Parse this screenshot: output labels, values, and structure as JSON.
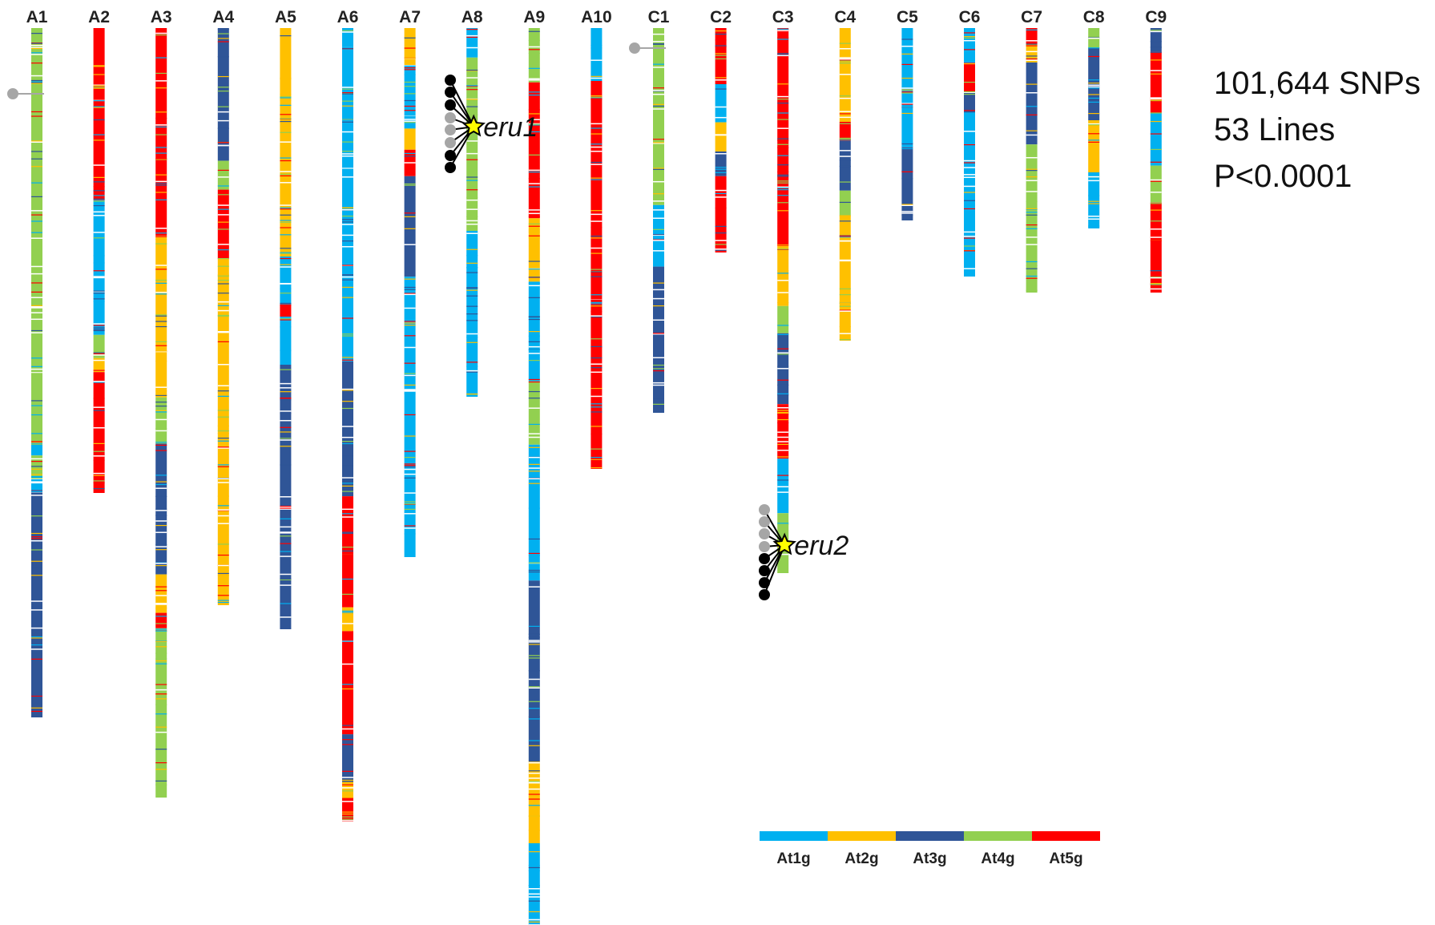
{
  "figure": {
    "stats": [
      "101,644 SNPs",
      "53 Lines",
      "P<0.0001"
    ]
  },
  "palette": {
    "At1g": "#00B0F0",
    "At2g": "#FFC000",
    "At3g": "#2F5597",
    "At4g": "#92D050",
    "At5g": "#FF0000"
  },
  "legend": [
    {
      "key": "At1g",
      "label": "At1g",
      "color": "#00B0F0"
    },
    {
      "key": "At2g",
      "label": "At2g",
      "color": "#FFC000"
    },
    {
      "key": "At3g",
      "label": "At3g",
      "color": "#2F5597"
    },
    {
      "key": "At4g",
      "label": "At4g",
      "color": "#92D050"
    },
    {
      "key": "At5g",
      "label": "At5g",
      "color": "#FF0000"
    }
  ],
  "chromosomes": [
    {
      "name": "A1",
      "length": 0.86,
      "segments": [
        {
          "from": 0.0,
          "to": 0.6,
          "group": "At4g"
        },
        {
          "from": 0.6,
          "to": 0.62,
          "group": "At1g"
        },
        {
          "from": 0.62,
          "to": 0.65,
          "group": "At4g"
        },
        {
          "from": 0.65,
          "to": 0.67,
          "group": "At1g"
        },
        {
          "from": 0.67,
          "to": 1.0,
          "group": "At3g"
        }
      ]
    },
    {
      "name": "A2",
      "length": 0.58,
      "segments": [
        {
          "from": 0.0,
          "to": 0.37,
          "group": "At5g"
        },
        {
          "from": 0.37,
          "to": 0.66,
          "group": "At1g"
        },
        {
          "from": 0.66,
          "to": 0.71,
          "group": "At4g"
        },
        {
          "from": 0.71,
          "to": 0.74,
          "group": "At2g"
        },
        {
          "from": 0.74,
          "to": 1.0,
          "group": "At5g"
        }
      ]
    },
    {
      "name": "A3",
      "length": 0.96,
      "segments": [
        {
          "from": 0.0,
          "to": 0.27,
          "group": "At5g"
        },
        {
          "from": 0.27,
          "to": 0.48,
          "group": "At2g"
        },
        {
          "from": 0.48,
          "to": 0.54,
          "group": "At4g"
        },
        {
          "from": 0.54,
          "to": 0.71,
          "group": "At3g"
        },
        {
          "from": 0.71,
          "to": 0.76,
          "group": "At2g"
        },
        {
          "from": 0.76,
          "to": 0.78,
          "group": "At5g"
        },
        {
          "from": 0.78,
          "to": 1.0,
          "group": "At4g"
        }
      ]
    },
    {
      "name": "A4",
      "length": 0.72,
      "segments": [
        {
          "from": 0.0,
          "to": 0.23,
          "group": "At3g"
        },
        {
          "from": 0.23,
          "to": 0.28,
          "group": "At4g"
        },
        {
          "from": 0.28,
          "to": 0.4,
          "group": "At5g"
        },
        {
          "from": 0.4,
          "to": 1.0,
          "group": "At2g"
        }
      ]
    },
    {
      "name": "A5",
      "length": 0.75,
      "segments": [
        {
          "from": 0.0,
          "to": 0.38,
          "group": "At2g"
        },
        {
          "from": 0.38,
          "to": 0.46,
          "group": "At1g"
        },
        {
          "from": 0.46,
          "to": 0.48,
          "group": "At5g"
        },
        {
          "from": 0.48,
          "to": 0.56,
          "group": "At1g"
        },
        {
          "from": 0.56,
          "to": 1.0,
          "group": "At3g"
        }
      ]
    },
    {
      "name": "A6",
      "length": 0.99,
      "segments": [
        {
          "from": 0.0,
          "to": 0.42,
          "group": "At1g"
        },
        {
          "from": 0.42,
          "to": 0.59,
          "group": "At3g"
        },
        {
          "from": 0.59,
          "to": 0.73,
          "group": "At5g"
        },
        {
          "from": 0.73,
          "to": 0.76,
          "group": "At2g"
        },
        {
          "from": 0.76,
          "to": 0.89,
          "group": "At5g"
        },
        {
          "from": 0.89,
          "to": 0.95,
          "group": "At3g"
        },
        {
          "from": 0.95,
          "to": 0.97,
          "group": "At2g"
        },
        {
          "from": 0.97,
          "to": 1.0,
          "group": "At5g"
        }
      ]
    },
    {
      "name": "A7",
      "length": 0.66,
      "segments": [
        {
          "from": 0.0,
          "to": 0.07,
          "group": "At2g"
        },
        {
          "from": 0.07,
          "to": 0.19,
          "group": "At1g"
        },
        {
          "from": 0.19,
          "to": 0.23,
          "group": "At2g"
        },
        {
          "from": 0.23,
          "to": 0.28,
          "group": "At5g"
        },
        {
          "from": 0.28,
          "to": 0.47,
          "group": "At3g"
        },
        {
          "from": 0.47,
          "to": 1.0,
          "group": "At1g"
        }
      ]
    },
    {
      "name": "A8",
      "length": 0.46,
      "segments": [
        {
          "from": 0.0,
          "to": 0.08,
          "group": "At1g"
        },
        {
          "from": 0.08,
          "to": 0.55,
          "group": "At4g"
        },
        {
          "from": 0.55,
          "to": 1.0,
          "group": "At1g"
        }
      ]
    },
    {
      "name": "A9",
      "length": 1.13,
      "segments": [
        {
          "from": 0.0,
          "to": 0.06,
          "group": "At4g"
        },
        {
          "from": 0.06,
          "to": 0.21,
          "group": "At5g"
        },
        {
          "from": 0.21,
          "to": 0.28,
          "group": "At2g"
        },
        {
          "from": 0.28,
          "to": 0.39,
          "group": "At1g"
        },
        {
          "from": 0.39,
          "to": 0.46,
          "group": "At4g"
        },
        {
          "from": 0.46,
          "to": 0.61,
          "group": "At1g"
        },
        {
          "from": 0.61,
          "to": 0.81,
          "group": "At3g"
        },
        {
          "from": 0.81,
          "to": 0.9,
          "group": "At2g"
        },
        {
          "from": 0.9,
          "to": 1.0,
          "group": "At1g"
        }
      ]
    },
    {
      "name": "A10",
      "length": 0.55,
      "segments": [
        {
          "from": 0.0,
          "to": 0.12,
          "group": "At1g"
        },
        {
          "from": 0.12,
          "to": 1.0,
          "group": "At5g"
        }
      ]
    },
    {
      "name": "C1",
      "length": 0.48,
      "segments": [
        {
          "from": 0.0,
          "to": 0.46,
          "group": "At4g"
        },
        {
          "from": 0.46,
          "to": 0.62,
          "group": "At1g"
        },
        {
          "from": 0.62,
          "to": 1.0,
          "group": "At3g"
        }
      ]
    },
    {
      "name": "C2",
      "length": 0.28,
      "segments": [
        {
          "from": 0.0,
          "to": 0.25,
          "group": "At5g"
        },
        {
          "from": 0.25,
          "to": 0.42,
          "group": "At1g"
        },
        {
          "from": 0.42,
          "to": 0.55,
          "group": "At2g"
        },
        {
          "from": 0.55,
          "to": 0.66,
          "group": "At3g"
        },
        {
          "from": 0.66,
          "to": 1.0,
          "group": "At5g"
        }
      ]
    },
    {
      "name": "C3",
      "length": 0.68,
      "segments": [
        {
          "from": 0.0,
          "to": 0.4,
          "group": "At5g"
        },
        {
          "from": 0.4,
          "to": 0.51,
          "group": "At2g"
        },
        {
          "from": 0.51,
          "to": 0.56,
          "group": "At4g"
        },
        {
          "from": 0.56,
          "to": 0.69,
          "group": "At3g"
        },
        {
          "from": 0.69,
          "to": 0.79,
          "group": "At5g"
        },
        {
          "from": 0.79,
          "to": 0.89,
          "group": "At1g"
        },
        {
          "from": 0.89,
          "to": 1.0,
          "group": "At4g"
        }
      ]
    },
    {
      "name": "C4",
      "length": 0.39,
      "segments": [
        {
          "from": 0.0,
          "to": 0.3,
          "group": "At2g"
        },
        {
          "from": 0.3,
          "to": 0.36,
          "group": "At5g"
        },
        {
          "from": 0.36,
          "to": 0.52,
          "group": "At3g"
        },
        {
          "from": 0.52,
          "to": 0.6,
          "group": "At4g"
        },
        {
          "from": 0.6,
          "to": 1.0,
          "group": "At2g"
        }
      ]
    },
    {
      "name": "C5",
      "length": 0.24,
      "segments": [
        {
          "from": 0.0,
          "to": 0.62,
          "group": "At1g"
        },
        {
          "from": 0.62,
          "to": 1.0,
          "group": "At3g"
        }
      ]
    },
    {
      "name": "C6",
      "length": 0.31,
      "segments": [
        {
          "from": 0.0,
          "to": 0.14,
          "group": "At1g"
        },
        {
          "from": 0.14,
          "to": 0.26,
          "group": "At5g"
        },
        {
          "from": 0.26,
          "to": 0.34,
          "group": "At3g"
        },
        {
          "from": 0.34,
          "to": 1.0,
          "group": "At1g"
        }
      ]
    },
    {
      "name": "C7",
      "length": 0.33,
      "segments": [
        {
          "from": 0.0,
          "to": 0.06,
          "group": "At5g"
        },
        {
          "from": 0.06,
          "to": 0.13,
          "group": "At2g"
        },
        {
          "from": 0.13,
          "to": 0.44,
          "group": "At3g"
        },
        {
          "from": 0.44,
          "to": 1.0,
          "group": "At4g"
        }
      ]
    },
    {
      "name": "C8",
      "length": 0.25,
      "segments": [
        {
          "from": 0.0,
          "to": 0.1,
          "group": "At4g"
        },
        {
          "from": 0.1,
          "to": 0.46,
          "group": "At3g"
        },
        {
          "from": 0.46,
          "to": 0.72,
          "group": "At2g"
        },
        {
          "from": 0.72,
          "to": 1.0,
          "group": "At1g"
        }
      ]
    },
    {
      "name": "C9",
      "length": 0.33,
      "segments": [
        {
          "from": 0.0,
          "to": 0.09,
          "group": "At3g"
        },
        {
          "from": 0.09,
          "to": 0.32,
          "group": "At5g"
        },
        {
          "from": 0.32,
          "to": 0.52,
          "group": "At1g"
        },
        {
          "from": 0.52,
          "to": 0.66,
          "group": "At4g"
        },
        {
          "from": 0.66,
          "to": 1.0,
          "group": "At5g"
        }
      ]
    }
  ],
  "loci": [
    {
      "name": "eru1",
      "chromosome": "A8"
    },
    {
      "name": "eru2",
      "chromosome": "C3"
    }
  ]
}
